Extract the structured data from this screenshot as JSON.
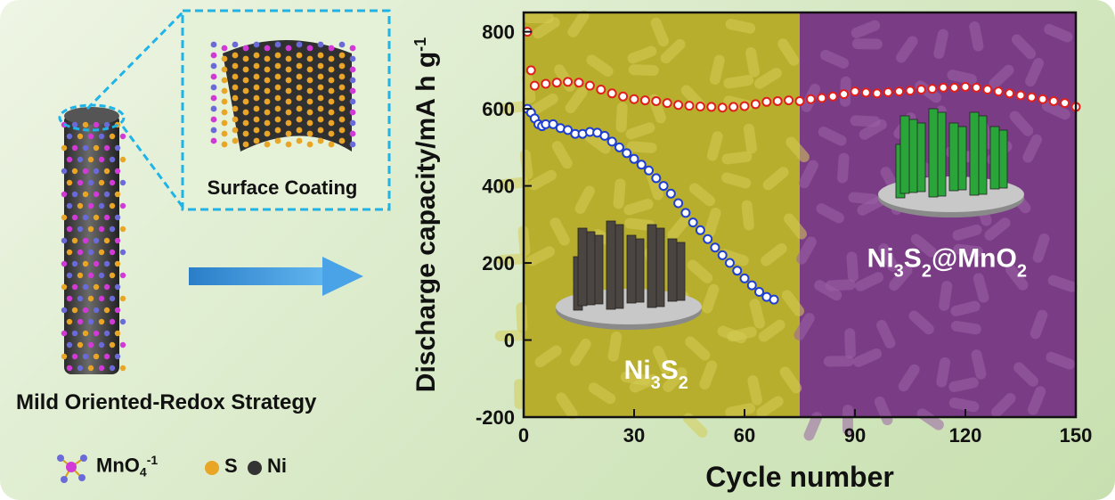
{
  "left_panel": {
    "inset_caption": "Surface Coating",
    "strategy_caption": "Mild Oriented-Redox Strategy",
    "legend": [
      {
        "label": "MnO",
        "sub": "4",
        "sup": "-1",
        "icon": "mno4-molecule-icon",
        "color": "#d23ad8"
      },
      {
        "label": "S",
        "icon": "sulfur-atom-icon",
        "color": "#e9a526"
      },
      {
        "label": "Ni",
        "icon": "nickel-atom-icon",
        "color": "#333333"
      }
    ],
    "arrow_color": "#2e8fd8"
  },
  "chart_data": {
    "type": "scatter",
    "xlabel": "Cycle  number",
    "ylabel": "Discharge capacity/mA h g",
    "ylabel_sup": "-1",
    "xlim": [
      0,
      150
    ],
    "ylim": [
      -200,
      850
    ],
    "xticks": [
      0,
      30,
      60,
      90,
      120,
      150
    ],
    "yticks": [
      -200,
      0,
      200,
      400,
      600,
      800
    ],
    "grid": false,
    "backgrounds": [
      {
        "x_range": [
          0,
          75
        ],
        "color": "#b8ae2e"
      },
      {
        "x_range": [
          75,
          150
        ],
        "color": "#7b3c86"
      }
    ],
    "labels": [
      {
        "base": "Ni",
        "parts": [
          [
            "Ni",
            ""
          ],
          [
            "3",
            "sub"
          ],
          [
            "S",
            ""
          ],
          [
            "2",
            "sub"
          ]
        ],
        "at": [
          36,
          -100
        ]
      },
      {
        "base": "Ni3S2@MnO2",
        "parts": [
          [
            "Ni",
            ""
          ],
          [
            "3",
            "sub"
          ],
          [
            "S",
            ""
          ],
          [
            "2",
            "sub"
          ],
          [
            "@MnO",
            ""
          ],
          [
            "2",
            "sub"
          ]
        ],
        "at": [
          115,
          190
        ]
      }
    ],
    "series": [
      {
        "color": "#e0201c",
        "x": [
          1,
          2,
          3,
          6,
          9,
          12,
          15,
          18,
          21,
          24,
          27,
          30,
          33,
          36,
          39,
          42,
          45,
          48,
          51,
          54,
          57,
          60,
          63,
          66,
          69,
          72,
          75,
          78,
          81,
          84,
          87,
          90,
          93,
          96,
          99,
          102,
          105,
          108,
          111,
          114,
          117,
          120,
          123,
          126,
          129,
          132,
          135,
          138,
          141,
          144,
          147,
          150
        ],
        "y": [
          800,
          700,
          660,
          665,
          668,
          670,
          668,
          660,
          650,
          640,
          632,
          625,
          622,
          620,
          615,
          610,
          608,
          606,
          605,
          603,
          605,
          607,
          612,
          618,
          620,
          622,
          620,
          625,
          628,
          632,
          638,
          645,
          642,
          640,
          643,
          645,
          647,
          650,
          652,
          655,
          655,
          657,
          655,
          650,
          645,
          640,
          635,
          630,
          625,
          620,
          615,
          605
        ]
      },
      {
        "color": "#1f3fd0",
        "x": [
          1,
          2,
          3,
          4,
          5,
          6,
          8,
          10,
          12,
          14,
          16,
          18,
          20,
          22,
          24,
          26,
          28,
          30,
          32,
          34,
          36,
          38,
          40,
          42,
          44,
          46,
          48,
          50,
          52,
          54,
          56,
          58,
          60,
          62,
          64,
          66,
          68
        ],
        "y": [
          600,
          590,
          575,
          560,
          555,
          560,
          560,
          550,
          545,
          535,
          535,
          540,
          538,
          530,
          515,
          500,
          485,
          470,
          455,
          440,
          420,
          400,
          380,
          355,
          330,
          305,
          285,
          262,
          240,
          220,
          200,
          180,
          160,
          142,
          125,
          112,
          105
        ]
      }
    ]
  }
}
